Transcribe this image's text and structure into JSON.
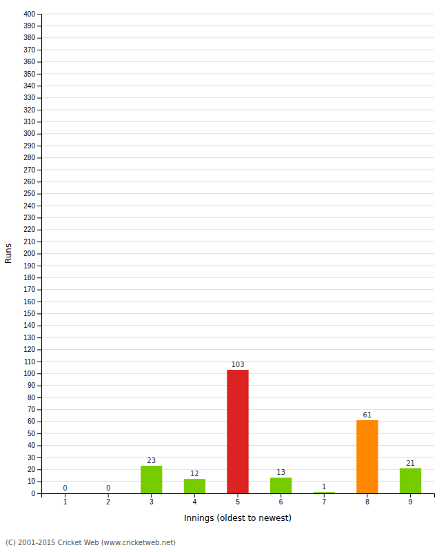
{
  "chart_data": {
    "type": "bar",
    "categories": [
      "1",
      "2",
      "3",
      "4",
      "5",
      "6",
      "7",
      "8",
      "9"
    ],
    "values": [
      0,
      0,
      23,
      12,
      103,
      13,
      1,
      61,
      21
    ],
    "colors": [
      "#77cc00",
      "#77cc00",
      "#77cc00",
      "#77cc00",
      "#dd2222",
      "#77cc00",
      "#77cc00",
      "#ff8800",
      "#77cc00"
    ],
    "xlabel": "Innings (oldest to newest)",
    "ylabel": "Runs",
    "ylim": [
      0,
      400
    ],
    "yticks": [
      0,
      10,
      20,
      30,
      40,
      50,
      60,
      70,
      80,
      90,
      100,
      110,
      120,
      130,
      140,
      150,
      160,
      170,
      180,
      190,
      200,
      210,
      220,
      230,
      240,
      250,
      260,
      270,
      280,
      290,
      300,
      310,
      320,
      330,
      340,
      350,
      360,
      370,
      380,
      390,
      400
    ],
    "grid": true,
    "data_labels": true,
    "footer": "(C) 2001-2015 Cricket Web (www.cricketweb.net)"
  }
}
